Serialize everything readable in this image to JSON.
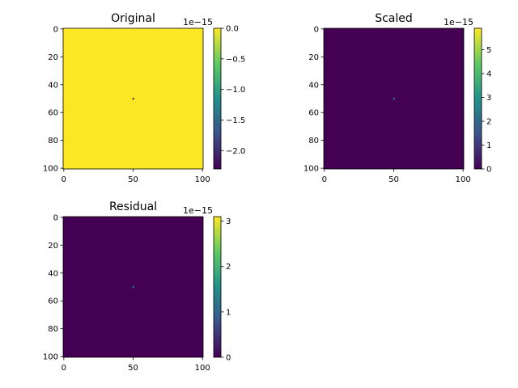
{
  "colors": {
    "viridis_low": "#440154",
    "viridis_mid": "#21918c",
    "viridis_high": "#fde725"
  },
  "chart_data": [
    {
      "type": "heatmap",
      "title": "Original",
      "xlabel": "",
      "ylabel": "",
      "shape": [
        101,
        101
      ],
      "background_value": 0.0,
      "spike": {
        "x": 50,
        "y": 50,
        "value": -2.2e-15
      },
      "x_ticks": [
        0,
        50,
        100
      ],
      "y_ticks": [
        0,
        20,
        40,
        60,
        80,
        100
      ],
      "colorbar": {
        "min": -2.3e-15,
        "max": 0.0,
        "offset_text": "1e−15",
        "ticks": [
          0.0,
          -0.5,
          -1.0,
          -1.5,
          -2.0
        ],
        "tick_labels": [
          "0.0",
          "−0.5",
          "−1.0",
          "−1.5",
          "−2.0"
        ]
      }
    },
    {
      "type": "heatmap",
      "title": "Scaled",
      "xlabel": "",
      "ylabel": "",
      "shape": [
        101,
        101
      ],
      "background_value": 0.0,
      "spike": {
        "x": 50,
        "y": 50,
        "value": 3e-15
      },
      "x_ticks": [
        0,
        50,
        100
      ],
      "y_ticks": [
        0,
        20,
        40,
        60,
        80,
        100
      ],
      "colorbar": {
        "min": 0.0,
        "max": 5.9e-15,
        "offset_text": "1e−15",
        "ticks": [
          0,
          1,
          2,
          3,
          4,
          5
        ],
        "tick_labels": [
          "0",
          "1",
          "2",
          "3",
          "4",
          "5"
        ]
      }
    },
    {
      "type": "heatmap",
      "title": "Residual",
      "xlabel": "",
      "ylabel": "",
      "shape": [
        101,
        101
      ],
      "background_value": 0.0,
      "spike": {
        "x": 50,
        "y": 50,
        "value": 1.5e-15
      },
      "x_ticks": [
        0,
        50,
        100
      ],
      "y_ticks": [
        0,
        20,
        40,
        60,
        80,
        100
      ],
      "colorbar": {
        "min": 0.0,
        "max": 3.1e-15,
        "offset_text": "1e−15",
        "ticks": [
          0,
          1,
          2,
          3
        ],
        "tick_labels": [
          "0",
          "1",
          "2",
          "3"
        ]
      }
    }
  ]
}
